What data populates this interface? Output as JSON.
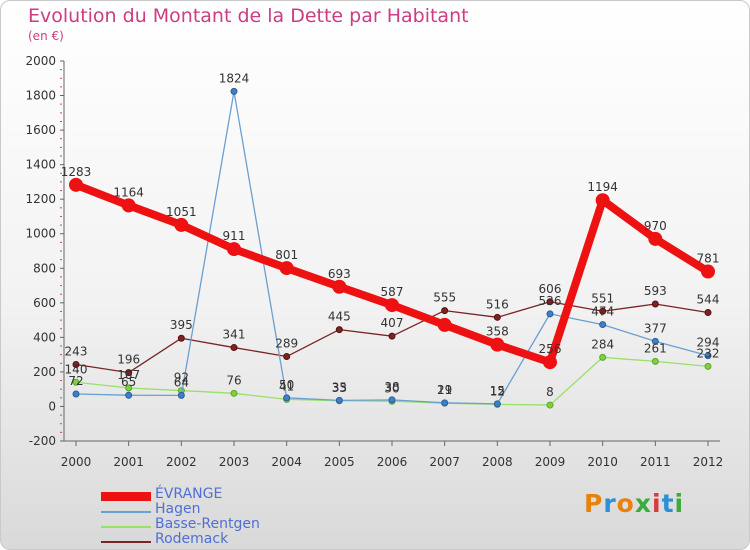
{
  "header": {
    "title": "Evolution du Montant de la Dette par Habitant",
    "subtitle": "(en €)"
  },
  "logo": {
    "text": "Proxiti",
    "colors": [
      "#e8820c",
      "#2e8fd6",
      "#e8820c",
      "#3bab3b",
      "#d83b3b",
      "#2e8fd6",
      "#3bab3b"
    ]
  },
  "chart_data": {
    "type": "line",
    "title": "Evolution du Montant de la Dette par Habitant",
    "ylabel": "(en €)",
    "xlabel": "",
    "categories": [
      "2000",
      "2001",
      "2002",
      "2003",
      "2004",
      "2005",
      "2006",
      "2007",
      "2008",
      "2009",
      "2010",
      "2011",
      "2012"
    ],
    "ylim": [
      -200,
      2000
    ],
    "yticks": [
      -200,
      0,
      200,
      400,
      600,
      800,
      1000,
      1200,
      1400,
      1600,
      1800,
      2000
    ],
    "grid": false,
    "legend_position": "bottom-left",
    "series": [
      {
        "name": "ÉVRANGE",
        "color": "#ee1111",
        "values": [
          1283,
          1164,
          1051,
          911,
          801,
          693,
          587,
          472,
          358,
          256,
          1194,
          970,
          781
        ],
        "labels": [
          "1283",
          "1164",
          "1051",
          "911",
          "801",
          "693",
          "587",
          "",
          "358",
          "256",
          "1194",
          "970",
          "781"
        ]
      },
      {
        "name": "Hagen",
        "color": "#6aa0d0",
        "values": [
          72,
          65,
          64,
          1824,
          50,
          35,
          38,
          21,
          15,
          536,
          474,
          377,
          294
        ],
        "labels": [
          "72",
          "65",
          "64",
          "1824",
          "50",
          "35",
          "38",
          "21",
          "15",
          "536",
          "474",
          "377",
          "294"
        ]
      },
      {
        "name": "Basse-Rentgen",
        "color": "#99e066",
        "values": [
          140,
          107,
          92,
          76,
          41,
          33,
          30,
          19,
          12,
          8,
          284,
          261,
          232
        ],
        "labels": [
          "140",
          "107",
          "92",
          "76",
          "41",
          "33",
          "30",
          "19",
          "12",
          "8",
          "284",
          "261",
          "232"
        ]
      },
      {
        "name": "Rodemack",
        "color": "#7a2424",
        "values": [
          243,
          196,
          395,
          341,
          289,
          445,
          407,
          555,
          516,
          606,
          551,
          593,
          544
        ],
        "labels": [
          "243",
          "196",
          "395",
          "341",
          "289",
          "445",
          "407",
          "555",
          "516",
          "606",
          "551",
          "593",
          "544"
        ]
      }
    ]
  }
}
